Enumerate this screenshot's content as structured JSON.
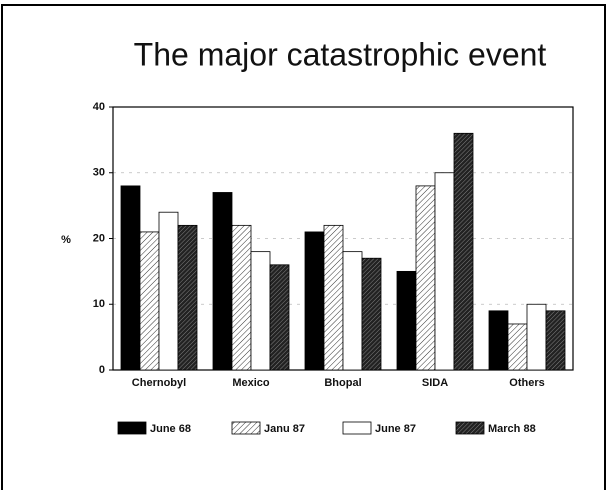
{
  "chart_data": {
    "type": "bar",
    "title": "The major catastrophic event",
    "y_label": "%",
    "categories": [
      "Chernobyl",
      "Mexico",
      "Bhopal",
      "SIDA",
      "Others"
    ],
    "series": [
      {
        "name": "June 68",
        "color": "#000000",
        "pattern": "solid",
        "values": [
          28,
          27,
          21,
          15,
          9
        ]
      },
      {
        "name": "Janu 87",
        "color": "#ffffff",
        "pattern": "hatch",
        "values": [
          21,
          22,
          22,
          28,
          7
        ]
      },
      {
        "name": "June 87",
        "color": "#ffffff",
        "pattern": "none",
        "values": [
          24,
          18,
          18,
          30,
          10
        ]
      },
      {
        "name": "March 88",
        "color": "#222222",
        "pattern": "dense-hatch",
        "values": [
          22,
          16,
          17,
          36,
          9
        ]
      }
    ],
    "ylim": [
      0,
      40
    ],
    "yticks": [
      0,
      10,
      20,
      30,
      40
    ],
    "grid": true
  }
}
